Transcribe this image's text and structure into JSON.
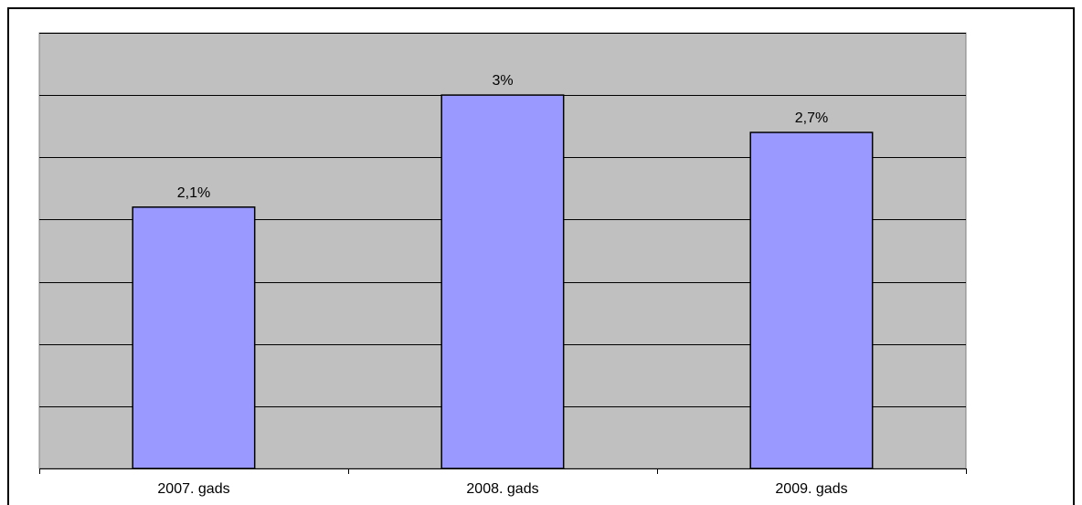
{
  "chart_data": {
    "type": "bar",
    "categories": [
      "2007. gads",
      "2008. gads",
      "2009. gads"
    ],
    "values": [
      2.1,
      3.0,
      2.7
    ],
    "data_labels": [
      "2,1%",
      "3%",
      "2,7%"
    ],
    "ylim": [
      0,
      3.5
    ],
    "ygrid_step": 0.5,
    "grid": true,
    "legend": "none",
    "title": "",
    "xlabel": "",
    "ylabel": "",
    "colors": {
      "bar_fill": "#9999ff",
      "bar_stroke": "#000000",
      "plot_bg": "#c0c0c0",
      "gridline": "#000000"
    }
  }
}
